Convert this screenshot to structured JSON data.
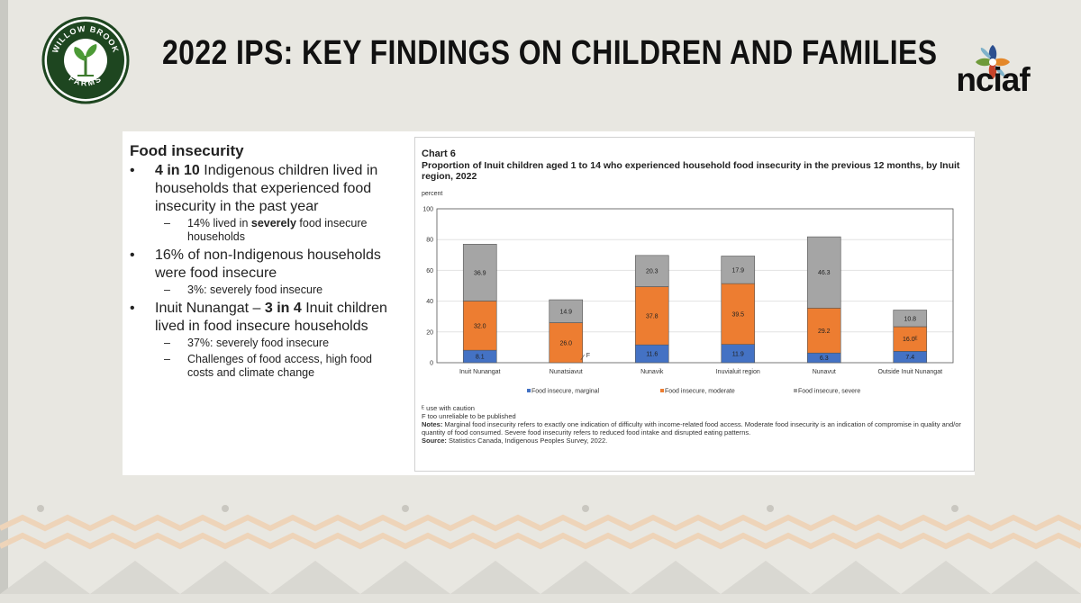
{
  "slide": {
    "title": "2022 IPS: KEY FINDINGS ON CHILDREN AND FAMILIES",
    "logo_left": {
      "top_text": "WILLOW BROOK",
      "bottom_text": "FARMS"
    },
    "logo_right": {
      "text": "nciaf"
    }
  },
  "bullets": {
    "heading": "Food insecurity",
    "items": [
      {
        "parts": [
          {
            "t": "4 in 10",
            "b": true
          },
          {
            "t": " Indigenous children lived in households that experienced food insecurity in the past year",
            "b": false
          }
        ],
        "subs": [
          [
            {
              "t": "14% lived in ",
              "b": false
            },
            {
              "t": "severely",
              "b": true
            },
            {
              "t": " food insecure households",
              "b": false
            }
          ]
        ]
      },
      {
        "parts": [
          {
            "t": "16% of non-Indigenous households were food insecure",
            "b": false
          }
        ],
        "subs": [
          [
            {
              "t": "3%: severely food insecure",
              "b": false
            }
          ]
        ]
      },
      {
        "parts": [
          {
            "t": "Inuit Nunangat – ",
            "b": false
          },
          {
            "t": "3 in 4",
            "b": true
          },
          {
            "t": " Inuit children lived in food insecure households",
            "b": false
          }
        ],
        "subs": [
          [
            {
              "t": "37%: severely food insecure",
              "b": false
            }
          ],
          [
            {
              "t": "Challenges of food access, high food costs and climate change",
              "b": false
            }
          ]
        ]
      }
    ]
  },
  "chart": {
    "label": "Chart 6",
    "title": "Proportion of Inuit children aged 1 to 14 who experienced household food insecurity in the previous 12 months, by Inuit region, 2022",
    "notes": {
      "n1": "ᴱ use with caution",
      "n2": "F too unreliable to be published",
      "n3_label": "Notes:",
      "n3": " Marginal food insecurity refers to exactly one indication of difficulty with income-related food access. Moderate food insecurity is an indication of compromise in quality and/or quantity of food consumed. Severe food insecurity refers to reduced food intake and disrupted eating patterns.",
      "src_label": "Source:",
      "src": " Statistics Canada, Indigenous Peoples Survey, 2022."
    }
  },
  "chart_data": {
    "type": "bar",
    "stacked": true,
    "ylabel": "percent",
    "ylim": [
      0,
      100
    ],
    "yticks": [
      0,
      20,
      40,
      60,
      80,
      100
    ],
    "categories": [
      "Inuit Nunangat",
      "Nunatsiavut",
      "Nunavik",
      "Inuvialuit region",
      "Nunavut",
      "Outside Inuit Nunangat"
    ],
    "series": [
      {
        "name": "Food insecure, marginal",
        "color": "#4472c4",
        "values": [
          8.1,
          0,
          11.6,
          11.9,
          6.3,
          7.4
        ],
        "labels": [
          "8.1",
          "",
          "11.6",
          "11.9",
          "6.3",
          "7.4"
        ]
      },
      {
        "name": "Food insecure, moderate",
        "color": "#ed7d31",
        "values": [
          32.0,
          26.0,
          37.8,
          39.5,
          29.2,
          16.0
        ],
        "labels": [
          "32.0",
          "26.0",
          "37.8",
          "39.5",
          "29.2",
          "16.0ᴱ"
        ]
      },
      {
        "name": "Food insecure, severe",
        "color": "#a5a5a5",
        "values": [
          36.9,
          14.9,
          20.3,
          17.9,
          46.3,
          10.8
        ],
        "labels": [
          "36.9",
          "14.9",
          "20.3",
          "17.9",
          "46.3",
          "10.8"
        ]
      }
    ],
    "annotations": [
      {
        "category": "Nunatsiavut",
        "series": "Food insecure, marginal",
        "text": "F"
      }
    ]
  }
}
